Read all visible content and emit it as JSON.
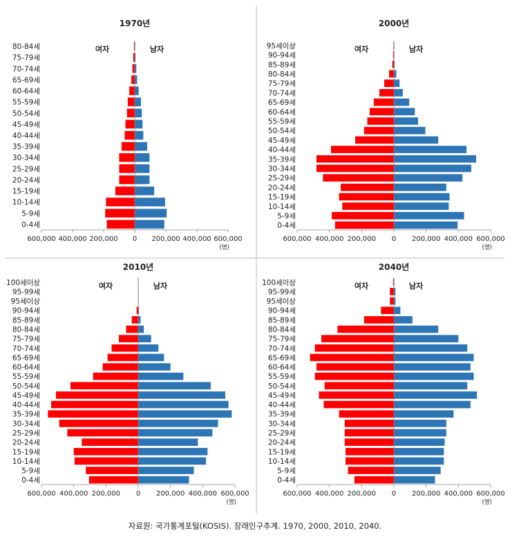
{
  "source": "자료원: 국가통계포털(KOSIS). 장래인구추계. 1970, 2000, 2010, 2040.",
  "unit": "(명)",
  "colors": {
    "female": "#ff0000",
    "male": "#2e75b6",
    "divider": "#bfbfbf"
  },
  "chart_data": [
    {
      "type": "bar",
      "orientation": "horizontal-population-pyramid",
      "title": "1970년",
      "left_label": "여자",
      "right_label": "남자",
      "xlim": [
        -600000,
        600000
      ],
      "x_ticks": [
        "600,000",
        "400,000",
        "200,000",
        "0",
        "200,000",
        "400,000",
        "600,000"
      ],
      "categories": [
        "80-84세",
        "75-79세",
        "70-74세",
        "65-69세",
        "60-64세",
        "55-59세",
        "50-54세",
        "45-49세",
        "40-44세",
        "35-39세",
        "30-34세",
        "25-29세",
        "20-24세",
        "15-19세",
        "10-14세",
        "5-9세",
        "0-4세"
      ],
      "series": [
        {
          "name": "여자",
          "values": [
            5000,
            10000,
            15000,
            22000,
            35000,
            45000,
            50000,
            60000,
            65000,
            85000,
            100000,
            100000,
            100000,
            125000,
            185000,
            190000,
            180000
          ]
        },
        {
          "name": "남자",
          "values": [
            3000,
            5000,
            10000,
            15000,
            25000,
            40000,
            45000,
            50000,
            55000,
            80000,
            95000,
            95000,
            95000,
            125000,
            195000,
            205000,
            190000
          ]
        }
      ]
    },
    {
      "type": "bar",
      "orientation": "horizontal-population-pyramid",
      "title": "2000년",
      "left_label": "여자",
      "right_label": "남자",
      "xlim": [
        -600000,
        600000
      ],
      "x_ticks": [
        "600,000",
        "400,000",
        "200,000",
        "0",
        "200,000",
        "400,000",
        "600,000"
      ],
      "categories": [
        "95세이상",
        "90-94세",
        "85-89세",
        "80-84세",
        "75-79세",
        "70-74세",
        "65-69세",
        "60-64세",
        "55-59세",
        "50-54세",
        "45-49세",
        "40-44세",
        "35-39세",
        "30-34세",
        "25-29세",
        "20-24세",
        "15-19세",
        "10-14세",
        "5-9세",
        "0-4세"
      ],
      "series": [
        {
          "name": "여자",
          "values": [
            3000,
            5000,
            10000,
            30000,
            60000,
            90000,
            125000,
            150000,
            165000,
            185000,
            240000,
            390000,
            480000,
            480000,
            440000,
            330000,
            340000,
            320000,
            385000,
            365000
          ]
        },
        {
          "name": "남자",
          "values": [
            1000,
            2000,
            5000,
            15000,
            35000,
            55000,
            95000,
            130000,
            150000,
            195000,
            275000,
            450000,
            510000,
            480000,
            425000,
            325000,
            345000,
            340000,
            435000,
            395000
          ]
        }
      ]
    },
    {
      "type": "bar",
      "orientation": "horizontal-population-pyramid",
      "title": "2010년",
      "left_label": "여자",
      "right_label": "남자",
      "xlim": [
        -600000,
        600000
      ],
      "x_ticks": [
        "600,000",
        "400,000",
        "200,000",
        "0",
        "200,000",
        "400,000",
        "600,000"
      ],
      "categories": [
        "100세이상",
        "95-99세",
        "95세이상",
        "90-94세",
        "85-89세",
        "80-84세",
        "75-79세",
        "70-74세",
        "65-69세",
        "60-64세",
        "55-59세",
        "50-54세",
        "45-49세",
        "40-44세",
        "35-39세",
        "30-34세",
        "25-29세",
        "20-24세",
        "15-19세",
        "10-14세",
        "5-9세",
        "0-4세"
      ],
      "series": [
        {
          "name": "여자",
          "values": [
            500,
            1000,
            2000,
            10000,
            40000,
            75000,
            120000,
            165000,
            190000,
            220000,
            280000,
            420000,
            510000,
            540000,
            560000,
            490000,
            440000,
            350000,
            400000,
            395000,
            325000,
            305000
          ]
        },
        {
          "name": "남자",
          "values": [
            200,
            500,
            1000,
            5000,
            15000,
            35000,
            80000,
            125000,
            160000,
            200000,
            280000,
            450000,
            540000,
            560000,
            580000,
            495000,
            460000,
            370000,
            430000,
            420000,
            345000,
            315000
          ]
        }
      ]
    },
    {
      "type": "bar",
      "orientation": "horizontal-population-pyramid",
      "title": "2040년",
      "left_label": "여자",
      "right_label": "남자",
      "xlim": [
        -600000,
        600000
      ],
      "x_ticks": [
        "600,000",
        "400,000",
        "200,000",
        "0",
        "200,000",
        "400,000",
        "600,000"
      ],
      "categories": [
        "100세이상",
        "95-99세",
        "95세이상",
        "90-94세",
        "85-89세",
        "80-84세",
        "75-79세",
        "70-74세",
        "65-69세",
        "60-64세",
        "55-59세",
        "50-54세",
        "45-49세",
        "40-44세",
        "35-39세",
        "30-34세",
        "25-29세",
        "20-24세",
        "15-19세",
        "10-14세",
        "5-9세",
        "0-4세"
      ],
      "series": [
        {
          "name": "여자",
          "values": [
            5000,
            25000,
            25000,
            80000,
            185000,
            350000,
            450000,
            490000,
            520000,
            480000,
            490000,
            430000,
            465000,
            435000,
            340000,
            305000,
            305000,
            305000,
            300000,
            300000,
            285000,
            245000
          ]
        },
        {
          "name": "남자",
          "values": [
            2000,
            10000,
            10000,
            40000,
            115000,
            275000,
            400000,
            455000,
            495000,
            475000,
            495000,
            455000,
            515000,
            475000,
            370000,
            325000,
            325000,
            315000,
            310000,
            310000,
            290000,
            255000
          ]
        }
      ]
    }
  ]
}
